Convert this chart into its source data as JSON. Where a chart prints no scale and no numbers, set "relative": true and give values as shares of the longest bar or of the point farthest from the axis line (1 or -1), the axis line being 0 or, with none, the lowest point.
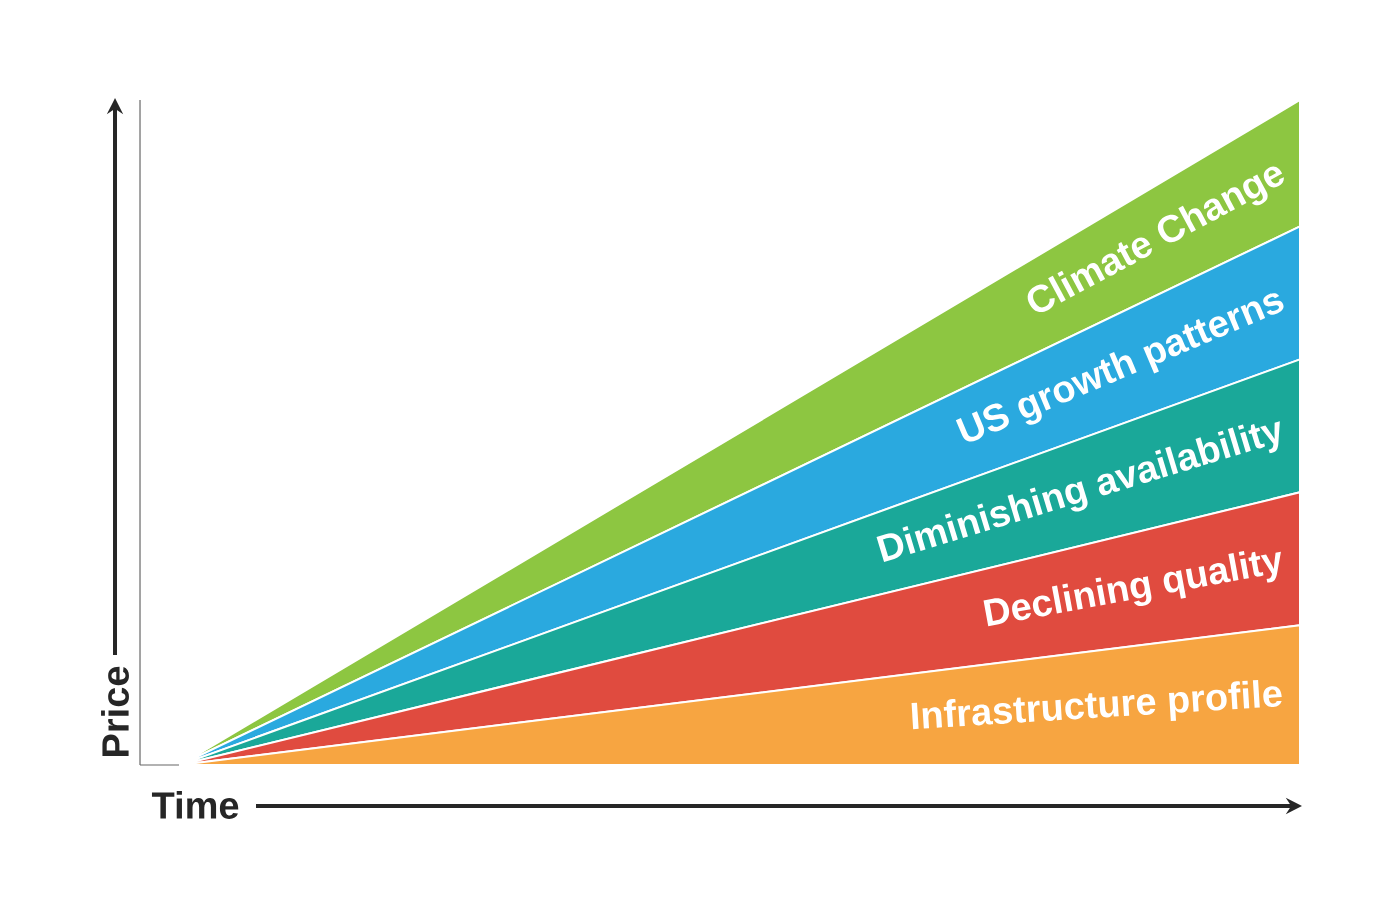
{
  "chart_data": {
    "type": "area",
    "stacked": true,
    "relative": true,
    "xlabel": "Time",
    "ylabel": "Price",
    "categories": [
      null,
      null
    ],
    "series": [
      {
        "name": "Infrastructure profile",
        "color": "#f7a541",
        "values": [
          0,
          0.21
        ]
      },
      {
        "name": "Declining quality",
        "color": "#e04b3f",
        "values": [
          0,
          0.2
        ]
      },
      {
        "name": "Diminishing availability",
        "color": "#1aa899",
        "values": [
          0,
          0.2
        ]
      },
      {
        "name": "US growth patterns",
        "color": "#2aa9df",
        "values": [
          0,
          0.2
        ]
      },
      {
        "name": "Climate Change",
        "color": "#8dc641",
        "values": [
          0,
          0.19
        ]
      }
    ]
  }
}
